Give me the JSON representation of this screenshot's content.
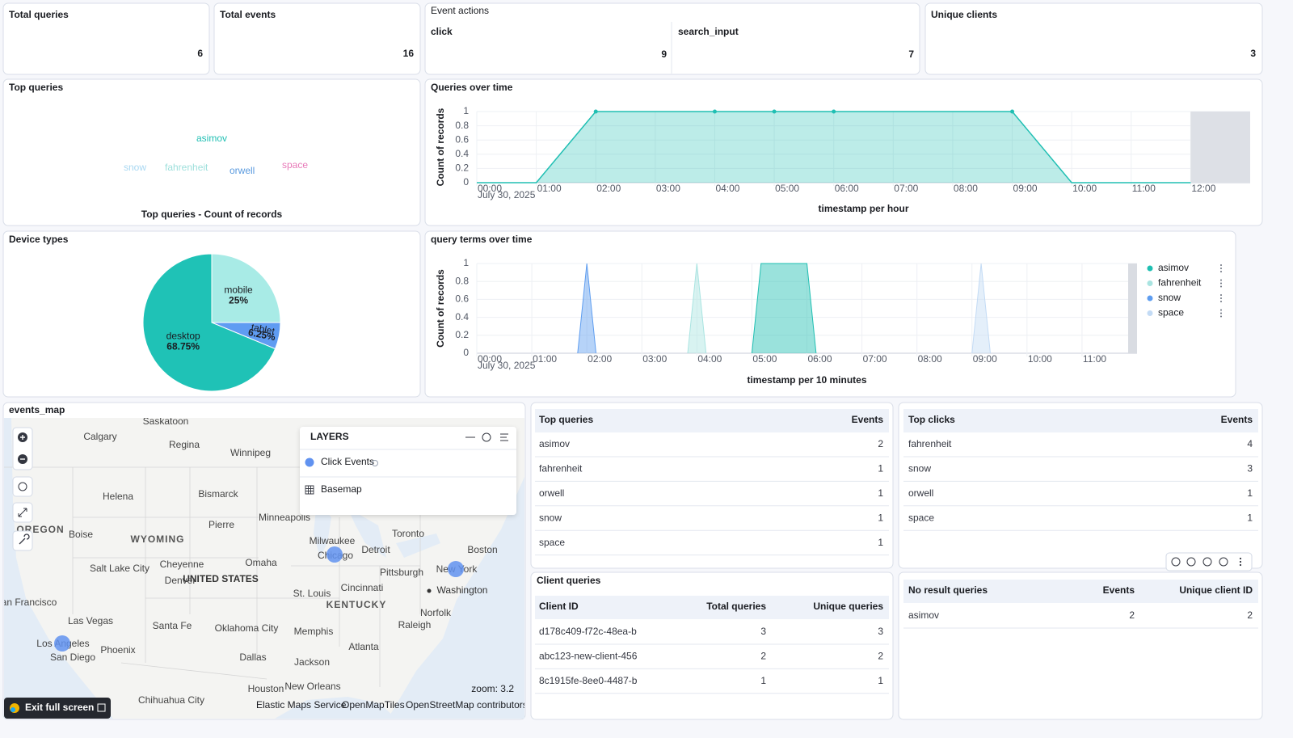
{
  "metrics": [
    {
      "title": "Total queries",
      "value": 6
    },
    {
      "title": "Total events",
      "value": 16
    },
    {
      "title": "Unique clients",
      "value": 3
    }
  ],
  "event_actions": {
    "title": "Event actions",
    "items": [
      {
        "label": "click",
        "value": 9
      },
      {
        "label": "search_input",
        "value": 7
      }
    ]
  },
  "chart_data": [
    {
      "type": "tagcloud",
      "title": "Top queries",
      "caption": "Top queries - Count of records",
      "categories": [
        "asimov",
        "snow",
        "fahrenheit",
        "orwell",
        "space"
      ],
      "values": [
        2,
        1,
        1,
        1,
        1
      ],
      "colors": [
        "#20bfb3",
        "#a9d8f2",
        "#9fe0dc",
        "#5b9bdf",
        "#e879b8"
      ]
    },
    {
      "type": "area",
      "title": "Queries over time",
      "y_label": "Count of records",
      "x_label": "timestamp per hour",
      "x_sublabel": "July 30, 2025",
      "x": [
        0,
        60,
        120,
        240,
        300,
        360,
        540,
        600,
        660,
        720
      ],
      "values": [
        0,
        0,
        1,
        1,
        1,
        1,
        1,
        0,
        0,
        0
      ],
      "color": "#20bfb3",
      "markers": true,
      "xlim": [
        0,
        780
      ],
      "ylim": [
        0,
        1
      ],
      "xticks": [
        {
          "value": 0,
          "label": "00:00"
        },
        {
          "value": 60,
          "label": "01:00"
        },
        {
          "value": 120,
          "label": "02:00"
        },
        {
          "value": 180,
          "label": "03:00"
        },
        {
          "value": 240,
          "label": "04:00"
        },
        {
          "value": 300,
          "label": "05:00"
        },
        {
          "value": 360,
          "label": "06:00"
        },
        {
          "value": 420,
          "label": "07:00"
        },
        {
          "value": 480,
          "label": "08:00"
        },
        {
          "value": 540,
          "label": "09:00"
        },
        {
          "value": 600,
          "label": "10:00"
        },
        {
          "value": 660,
          "label": "11:00"
        },
        {
          "value": 720,
          "label": "12:00"
        }
      ],
      "yticks": [
        0,
        0.2,
        0.4,
        0.6,
        0.8,
        1
      ],
      "grid": true
    },
    {
      "type": "area",
      "title": "query terms over time",
      "y_label": "Count of records",
      "x_label": "timestamp per 10 minutes",
      "x_sublabel": "July 30, 2025",
      "series": [
        {
          "name": "asimov",
          "color": "#1fbfb2",
          "x": [
            300,
            310,
            360,
            370
          ],
          "values": [
            0,
            1,
            1,
            0
          ]
        },
        {
          "name": "fahrenheit",
          "color": "#a9e4e1",
          "x": [
            230,
            240,
            250
          ],
          "values": [
            0,
            1,
            0
          ]
        },
        {
          "name": "snow",
          "color": "#5e9df0",
          "x": [
            110,
            120,
            130
          ],
          "values": [
            0,
            1,
            0
          ]
        },
        {
          "name": "space",
          "color": "#c3dbf5",
          "x": [
            540,
            550,
            560
          ],
          "values": [
            0,
            1,
            0
          ]
        }
      ],
      "xlim": [
        0,
        720
      ],
      "ylim": [
        0,
        1
      ],
      "xticks": [
        {
          "value": 0,
          "label": "00:00"
        },
        {
          "value": 60,
          "label": "01:00"
        },
        {
          "value": 120,
          "label": "02:00"
        },
        {
          "value": 180,
          "label": "03:00"
        },
        {
          "value": 240,
          "label": "04:00"
        },
        {
          "value": 300,
          "label": "05:00"
        },
        {
          "value": 360,
          "label": "06:00"
        },
        {
          "value": 420,
          "label": "07:00"
        },
        {
          "value": 480,
          "label": "08:00"
        },
        {
          "value": 540,
          "label": "09:00"
        },
        {
          "value": 600,
          "label": "10:00"
        },
        {
          "value": 660,
          "label": "11:00"
        }
      ],
      "yticks": [
        0,
        0.2,
        0.4,
        0.6,
        0.8,
        1
      ],
      "grid": true,
      "legend": "right"
    },
    {
      "type": "pie",
      "title": "Device types",
      "categories": [
        "mobile",
        "tablet",
        "desktop"
      ],
      "values": [
        25,
        6.25,
        68.75
      ],
      "value_labels": [
        "25%",
        "6.25%",
        "68.75%"
      ],
      "colors": [
        "#a8ebe6",
        "#5f9cf2",
        "#1fc2b6"
      ]
    }
  ],
  "map": {
    "title": "events_map",
    "labels": [
      "Saskatoon",
      "Calgary",
      "Regina",
      "Winnipeg",
      "Helena",
      "Bismarck",
      "Minneapolis",
      "Pierre",
      "OREGON",
      "Boise",
      "WYOMING",
      "Toronto",
      "Milwaukee",
      "Detroit",
      "Boston",
      "Chicago",
      "Salt Lake City",
      "Cheyenne",
      "Omaha",
      "UNITED STATES",
      "Denver",
      "Pittsburgh",
      "New York",
      "Cincinnati",
      "Washington",
      "St. Louis",
      "KENTUCKY",
      "San Francisco",
      "Las Vegas",
      "Santa Fe",
      "Oklahoma City",
      "Memphis",
      "Norfolk",
      "Raleigh",
      "Los Angeles",
      "Phoenix",
      "Atlanta",
      "San Diego",
      "Dallas",
      "Jackson",
      "Houston",
      "New Orleans",
      "Chihuahua City"
    ],
    "layers_title": "LAYERS",
    "layers": [
      "Click Events",
      "Basemap"
    ],
    "zoom": "zoom: 3.2",
    "attribution": [
      "Elastic Maps Service",
      "OpenMapTiles",
      "OpenStreetMap contributors"
    ]
  },
  "tables": [
    {
      "columns": [
        "Top queries",
        "Events"
      ],
      "rows": [
        [
          "asimov",
          2
        ],
        [
          "fahrenheit",
          1
        ],
        [
          "orwell",
          1
        ],
        [
          "snow",
          1
        ],
        [
          "space",
          1
        ]
      ]
    },
    {
      "columns": [
        "Top clicks",
        "Events"
      ],
      "rows": [
        [
          "fahrenheit",
          4
        ],
        [
          "snow",
          3
        ],
        [
          "orwell",
          1
        ],
        [
          "space",
          1
        ]
      ]
    },
    {
      "title": "Client queries",
      "columns": [
        "Client ID",
        "Total queries",
        "Unique queries"
      ],
      "rows": [
        [
          "d178c409-f72c-48ea-b",
          3,
          3
        ],
        [
          "abc123-new-client-456",
          2,
          2
        ],
        [
          "8c1915fe-8ee0-4487-b",
          1,
          1
        ]
      ]
    },
    {
      "columns": [
        "No result queries",
        "Events",
        "Unique client ID"
      ],
      "rows": [
        [
          "asimov",
          2,
          2
        ]
      ]
    }
  ],
  "footer": {
    "button": "Exit full screen"
  }
}
